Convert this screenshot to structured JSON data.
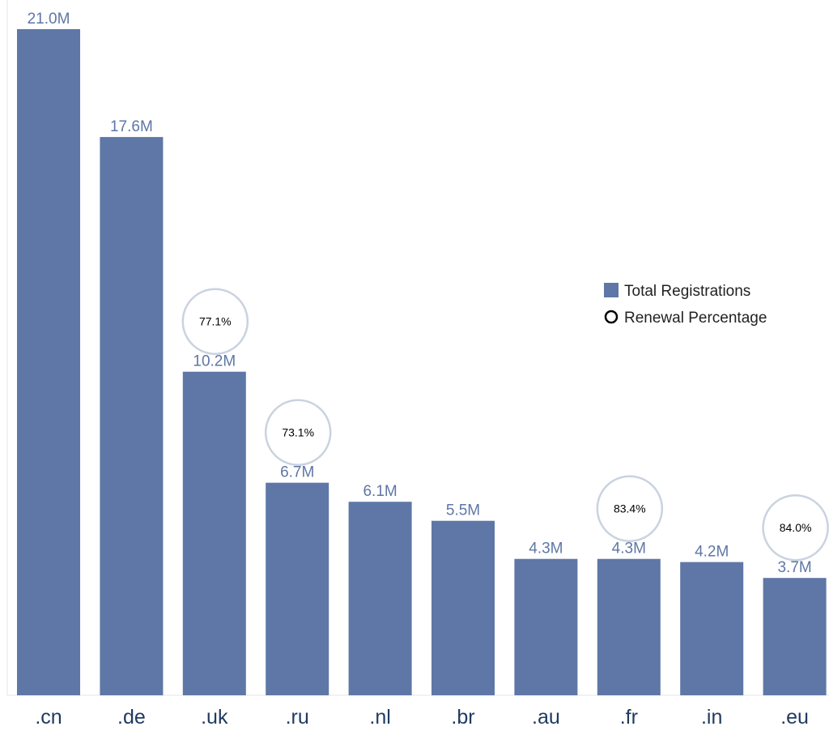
{
  "chart_data": {
    "type": "bar",
    "title": "",
    "xlabel": "",
    "ylabel": "",
    "ylim": [
      0,
      21.0
    ],
    "categories": [
      ".cn",
      ".de",
      ".uk",
      ".ru",
      ".nl",
      ".br",
      ".au",
      ".fr",
      ".in",
      ".eu"
    ],
    "series": [
      {
        "name": "Total Registrations",
        "values": [
          21.0,
          17.6,
          10.2,
          6.7,
          6.1,
          5.5,
          4.3,
          4.3,
          4.2,
          3.7
        ],
        "labels": [
          "21.0M",
          "17.6M",
          "10.2M",
          "6.7M",
          "6.1M",
          "5.5M",
          "4.3M",
          "4.3M",
          "4.2M",
          "3.7M"
        ]
      },
      {
        "name": "Renewal Percentage",
        "values": [
          null,
          null,
          77.1,
          73.1,
          null,
          null,
          null,
          83.4,
          null,
          84.0
        ],
        "labels": [
          null,
          null,
          "77.1%",
          "73.1%",
          null,
          null,
          null,
          "83.4%",
          null,
          "84.0%"
        ]
      }
    ],
    "legend": {
      "position": "right",
      "entries": [
        {
          "name": "Total Registrations",
          "marker": "square"
        },
        {
          "name": "Renewal Percentage",
          "marker": "circle"
        }
      ]
    },
    "grid": false,
    "colors": {
      "bar": "#5e77a6",
      "bar_label": "#5e77a6",
      "category_label": "#1f3a5f",
      "circle_stroke": "#c9d3df",
      "axis": "#e6e6e6"
    }
  }
}
